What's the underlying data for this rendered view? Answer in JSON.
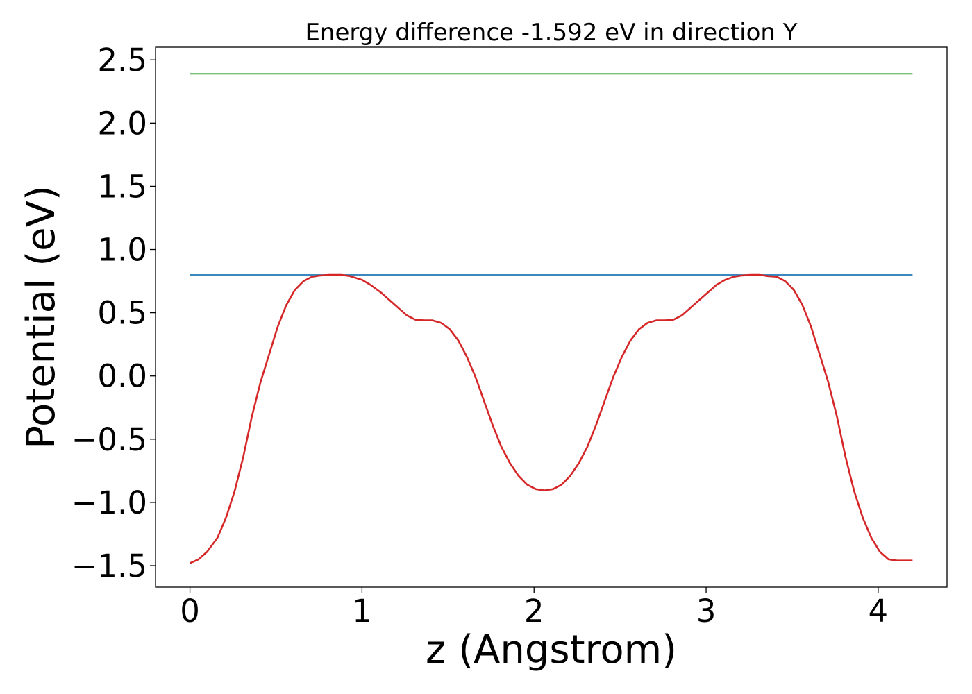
{
  "chart_data": {
    "type": "line",
    "title": "Energy difference -1.592 eV in direction Y",
    "xlabel": "z (Angstrom)",
    "ylabel": "Potential (eV)",
    "xlim": [
      -0.2,
      4.4
    ],
    "ylim": [
      -1.67,
      2.6
    ],
    "x_ticks": [
      0,
      1,
      2,
      3,
      4
    ],
    "x_tick_labels": [
      "0",
      "1",
      "2",
      "3",
      "4"
    ],
    "y_ticks": [
      -1.5,
      -1.0,
      -0.5,
      0.0,
      0.5,
      1.0,
      1.5,
      2.0,
      2.5
    ],
    "y_tick_labels": [
      "−1.5",
      "−1.0",
      "−0.5",
      "0.0",
      "0.5",
      "1.0",
      "1.5",
      "2.0",
      "2.5"
    ],
    "grid": false,
    "series": [
      {
        "color": "#1f77b4",
        "x": [
          0,
          4.2
        ],
        "y": [
          0.8,
          0.8
        ]
      },
      {
        "color": "#2ca02c",
        "x": [
          0,
          4.2
        ],
        "y": [
          2.39,
          2.39
        ]
      },
      {
        "color": "#d62728",
        "x": [
          0,
          0.05,
          0.1,
          0.16,
          0.21,
          0.26,
          0.31,
          0.36,
          0.41,
          0.46,
          0.51,
          0.56,
          0.61,
          0.66,
          0.71,
          0.76,
          0.81,
          0.88,
          0.93,
          1.0,
          1.05,
          1.11,
          1.16,
          1.21,
          1.26,
          1.31,
          1.36,
          1.41,
          1.46,
          1.51,
          1.56,
          1.61,
          1.66,
          1.71,
          1.76,
          1.81,
          1.86,
          1.91,
          1.96,
          2.01,
          2.06,
          2.11,
          2.16,
          2.21,
          2.26,
          2.31,
          2.36,
          2.41,
          2.46,
          2.51,
          2.56,
          2.61,
          2.66,
          2.71,
          2.76,
          2.81,
          2.86,
          2.91,
          2.96,
          3.01,
          3.06,
          3.11,
          3.16,
          3.21,
          3.26,
          3.31,
          3.36,
          3.41,
          3.46,
          3.51,
          3.56,
          3.61,
          3.66,
          3.71,
          3.76,
          3.81,
          3.86,
          3.91,
          3.96,
          4.01,
          4.06,
          4.11,
          4.16,
          4.2
        ],
        "y": [
          -1.48,
          -1.45,
          -1.39,
          -1.28,
          -1.12,
          -0.91,
          -0.64,
          -0.32,
          -0.05,
          0.17,
          0.39,
          0.56,
          0.68,
          0.75,
          0.785,
          0.795,
          0.8,
          0.8,
          0.79,
          0.76,
          0.72,
          0.66,
          0.6,
          0.54,
          0.48,
          0.445,
          0.44,
          0.44,
          0.42,
          0.37,
          0.28,
          0.15,
          -0.01,
          -0.2,
          -0.39,
          -0.56,
          -0.69,
          -0.79,
          -0.86,
          -0.895,
          -0.905,
          -0.895,
          -0.86,
          -0.79,
          -0.69,
          -0.56,
          -0.39,
          -0.2,
          -0.01,
          0.15,
          0.28,
          0.37,
          0.42,
          0.44,
          0.44,
          0.445,
          0.48,
          0.54,
          0.6,
          0.66,
          0.72,
          0.76,
          0.785,
          0.795,
          0.8,
          0.8,
          0.79,
          0.785,
          0.75,
          0.68,
          0.56,
          0.39,
          0.17,
          -0.05,
          -0.32,
          -0.64,
          -0.91,
          -1.12,
          -1.28,
          -1.39,
          -1.45,
          -1.46,
          -1.46,
          -1.46
        ]
      }
    ]
  }
}
